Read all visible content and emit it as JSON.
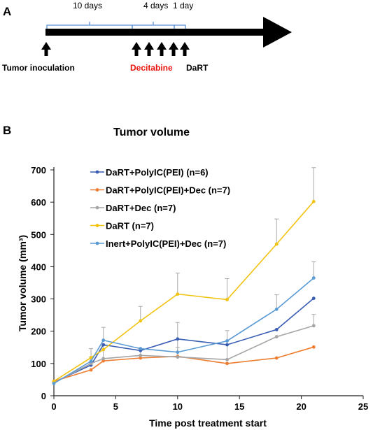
{
  "panel_a": {
    "label": "A",
    "durations": [
      "10 days",
      "4 days",
      "1 day"
    ],
    "tumor_label": "Tumor inoculation",
    "decitabine_label": "Decitabine",
    "dart_label": "DaRT",
    "decitabine_color": "#e8130b",
    "arrow_color": "#000000",
    "bracket_color": "#5b8fd6"
  },
  "panel_b": {
    "label": "B"
  },
  "chart_data": {
    "type": "line",
    "title": "Tumor volume",
    "xlabel": "Time post treatment start",
    "ylabel": "Tumor volume (mm³)",
    "xlim": [
      0,
      25
    ],
    "ylim": [
      0,
      700
    ],
    "xticks": [
      0,
      5,
      10,
      15,
      20,
      25
    ],
    "yticks": [
      0,
      100,
      200,
      300,
      400,
      500,
      600,
      700
    ],
    "legend_position": "top-left",
    "series": [
      {
        "name": "DaRT+PolyIC(PEI) (n=6)",
        "color": "#3a5db4",
        "x": [
          0,
          3,
          4,
          7,
          10,
          14,
          18,
          21
        ],
        "y": [
          42,
          95,
          158,
          140,
          176,
          158,
          205,
          302
        ],
        "err": [
          0,
          0,
          0,
          0,
          0,
          0,
          0,
          0
        ]
      },
      {
        "name": "DaRT+PolyIC(PEI)+Dec (n=7)",
        "color": "#ed7d31",
        "x": [
          0,
          3,
          4,
          7,
          10,
          14,
          18,
          21
        ],
        "y": [
          45,
          80,
          108,
          117,
          122,
          100,
          117,
          151
        ],
        "err": [
          0,
          0,
          0,
          0,
          0,
          0,
          0,
          0
        ]
      },
      {
        "name": "DaRT+Dec (n=7)",
        "color": "#a5a5a5",
        "x": [
          0,
          3,
          4,
          7,
          10,
          14,
          18,
          21
        ],
        "y": [
          40,
          100,
          115,
          125,
          120,
          112,
          183,
          217
        ],
        "err": [
          0,
          20,
          40,
          20,
          30,
          90,
          0,
          35
        ]
      },
      {
        "name": "DaRT (n=7)",
        "color": "#f2c313",
        "x": [
          0,
          3,
          4,
          7,
          10,
          14,
          18,
          21
        ],
        "y": [
          45,
          118,
          143,
          232,
          315,
          298,
          470,
          602
        ],
        "err": [
          0,
          28,
          0,
          45,
          65,
          65,
          78,
          105
        ]
      },
      {
        "name": "Inert+PolyIC(PEI)+Dec (n=7)",
        "color": "#5b9bd5",
        "x": [
          0,
          3,
          4,
          7,
          10,
          14,
          18,
          21
        ],
        "y": [
          38,
          107,
          172,
          146,
          135,
          170,
          268,
          365
        ],
        "err": [
          0,
          0,
          40,
          0,
          92,
          0,
          45,
          50
        ]
      }
    ]
  }
}
